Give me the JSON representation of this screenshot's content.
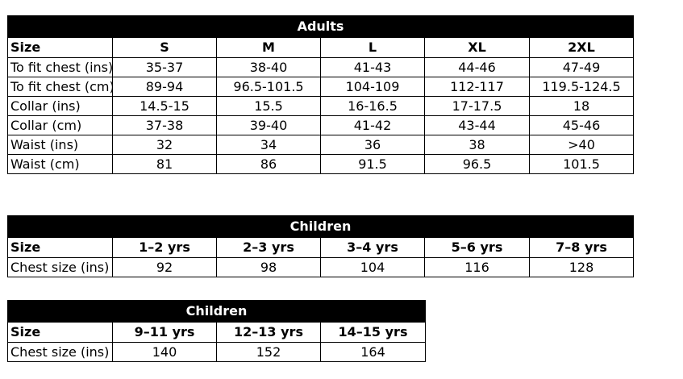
{
  "adults": {
    "title": "Adults",
    "headers": [
      "Size",
      "S",
      "M",
      "L",
      "XL",
      "2XL"
    ],
    "rows": [
      [
        "To fit chest (ins)",
        "35-37",
        "38-40",
        "41-43",
        "44-46",
        "47-49"
      ],
      [
        "To fit chest (cm)",
        "89-94",
        "96.5-101.5",
        "104-109",
        "112-117",
        "119.5-124.5"
      ],
      [
        "Collar (ins)",
        "14.5-15",
        "15.5",
        "16-16.5",
        "17-17.5",
        "18"
      ],
      [
        "Collar (cm)",
        "37-38",
        "39-40",
        "41-42",
        "43-44",
        "45-46"
      ],
      [
        "Waist (ins)",
        "32",
        "34",
        "36",
        "38",
        ">40"
      ],
      [
        "Waist (cm)",
        "81",
        "86",
        "91.5",
        "96.5",
        "101.5"
      ]
    ]
  },
  "children1": {
    "title": "Children",
    "headers": [
      "Size",
      "1–2 yrs",
      "2–3 yrs",
      "3–4 yrs",
      "5–6 yrs",
      "7–8 yrs"
    ],
    "rows": [
      [
        "Chest size (ins)",
        "92",
        "98",
        "104",
        "116",
        "128"
      ]
    ]
  },
  "children2": {
    "title": "Children",
    "headers": [
      "Size",
      "9–11 yrs",
      "12–13 yrs",
      "14–15 yrs"
    ],
    "rows": [
      [
        "Chest size (ins)",
        "140",
        "152",
        "164"
      ]
    ]
  }
}
